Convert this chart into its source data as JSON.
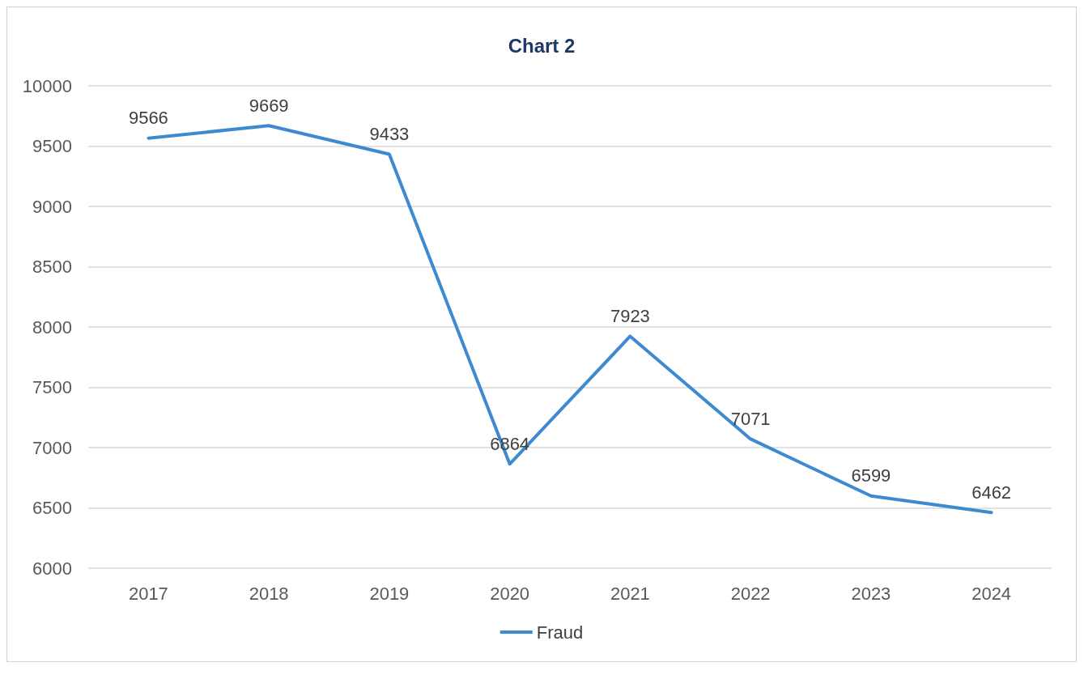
{
  "chart_data": {
    "type": "line",
    "title": "Chart 2",
    "categories": [
      "2017",
      "2018",
      "2019",
      "2020",
      "2021",
      "2022",
      "2023",
      "2024"
    ],
    "series": [
      {
        "name": "Fraud",
        "color": "#3d8ad0",
        "values": [
          9566,
          9669,
          9433,
          6864,
          7923,
          7071,
          6599,
          6462
        ]
      }
    ],
    "ylim": [
      6000,
      10000
    ],
    "yticks": [
      6000,
      6500,
      7000,
      7500,
      8000,
      8500,
      9000,
      9500,
      10000
    ],
    "grid": "y",
    "legend": "bottom",
    "marker": "none",
    "line_style": "solid",
    "data_labels": true
  }
}
